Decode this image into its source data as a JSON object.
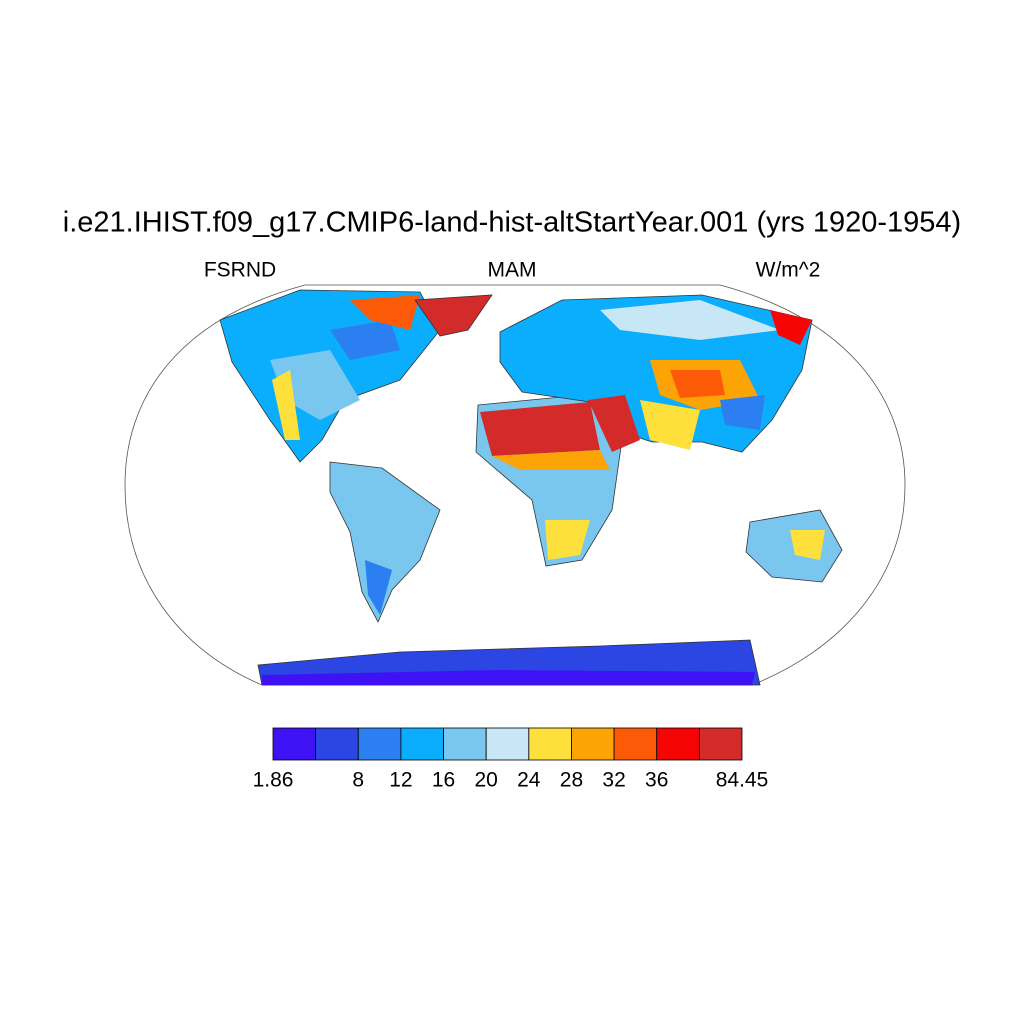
{
  "map": {
    "title": "i.e21.IHIST.f09_g17.CMIP6-land-hist-altStartYear.001 (yrs 1920-1954)",
    "left_string": "FSRND",
    "center_string": "MAM",
    "right_string": "W/m^2"
  },
  "colorbar": {
    "colors": [
      "#3f12f5",
      "#2b46e3",
      "#2b7ff0",
      "#0aaefc",
      "#79c7ee",
      "#c7e6f6",
      "#fde03b",
      "#fca405",
      "#fc5a06",
      "#f70505",
      "#d32a2a"
    ],
    "levels": [
      1.86,
      null,
      8,
      12,
      16,
      20,
      24,
      28,
      32,
      36,
      null,
      84.45
    ]
  }
}
